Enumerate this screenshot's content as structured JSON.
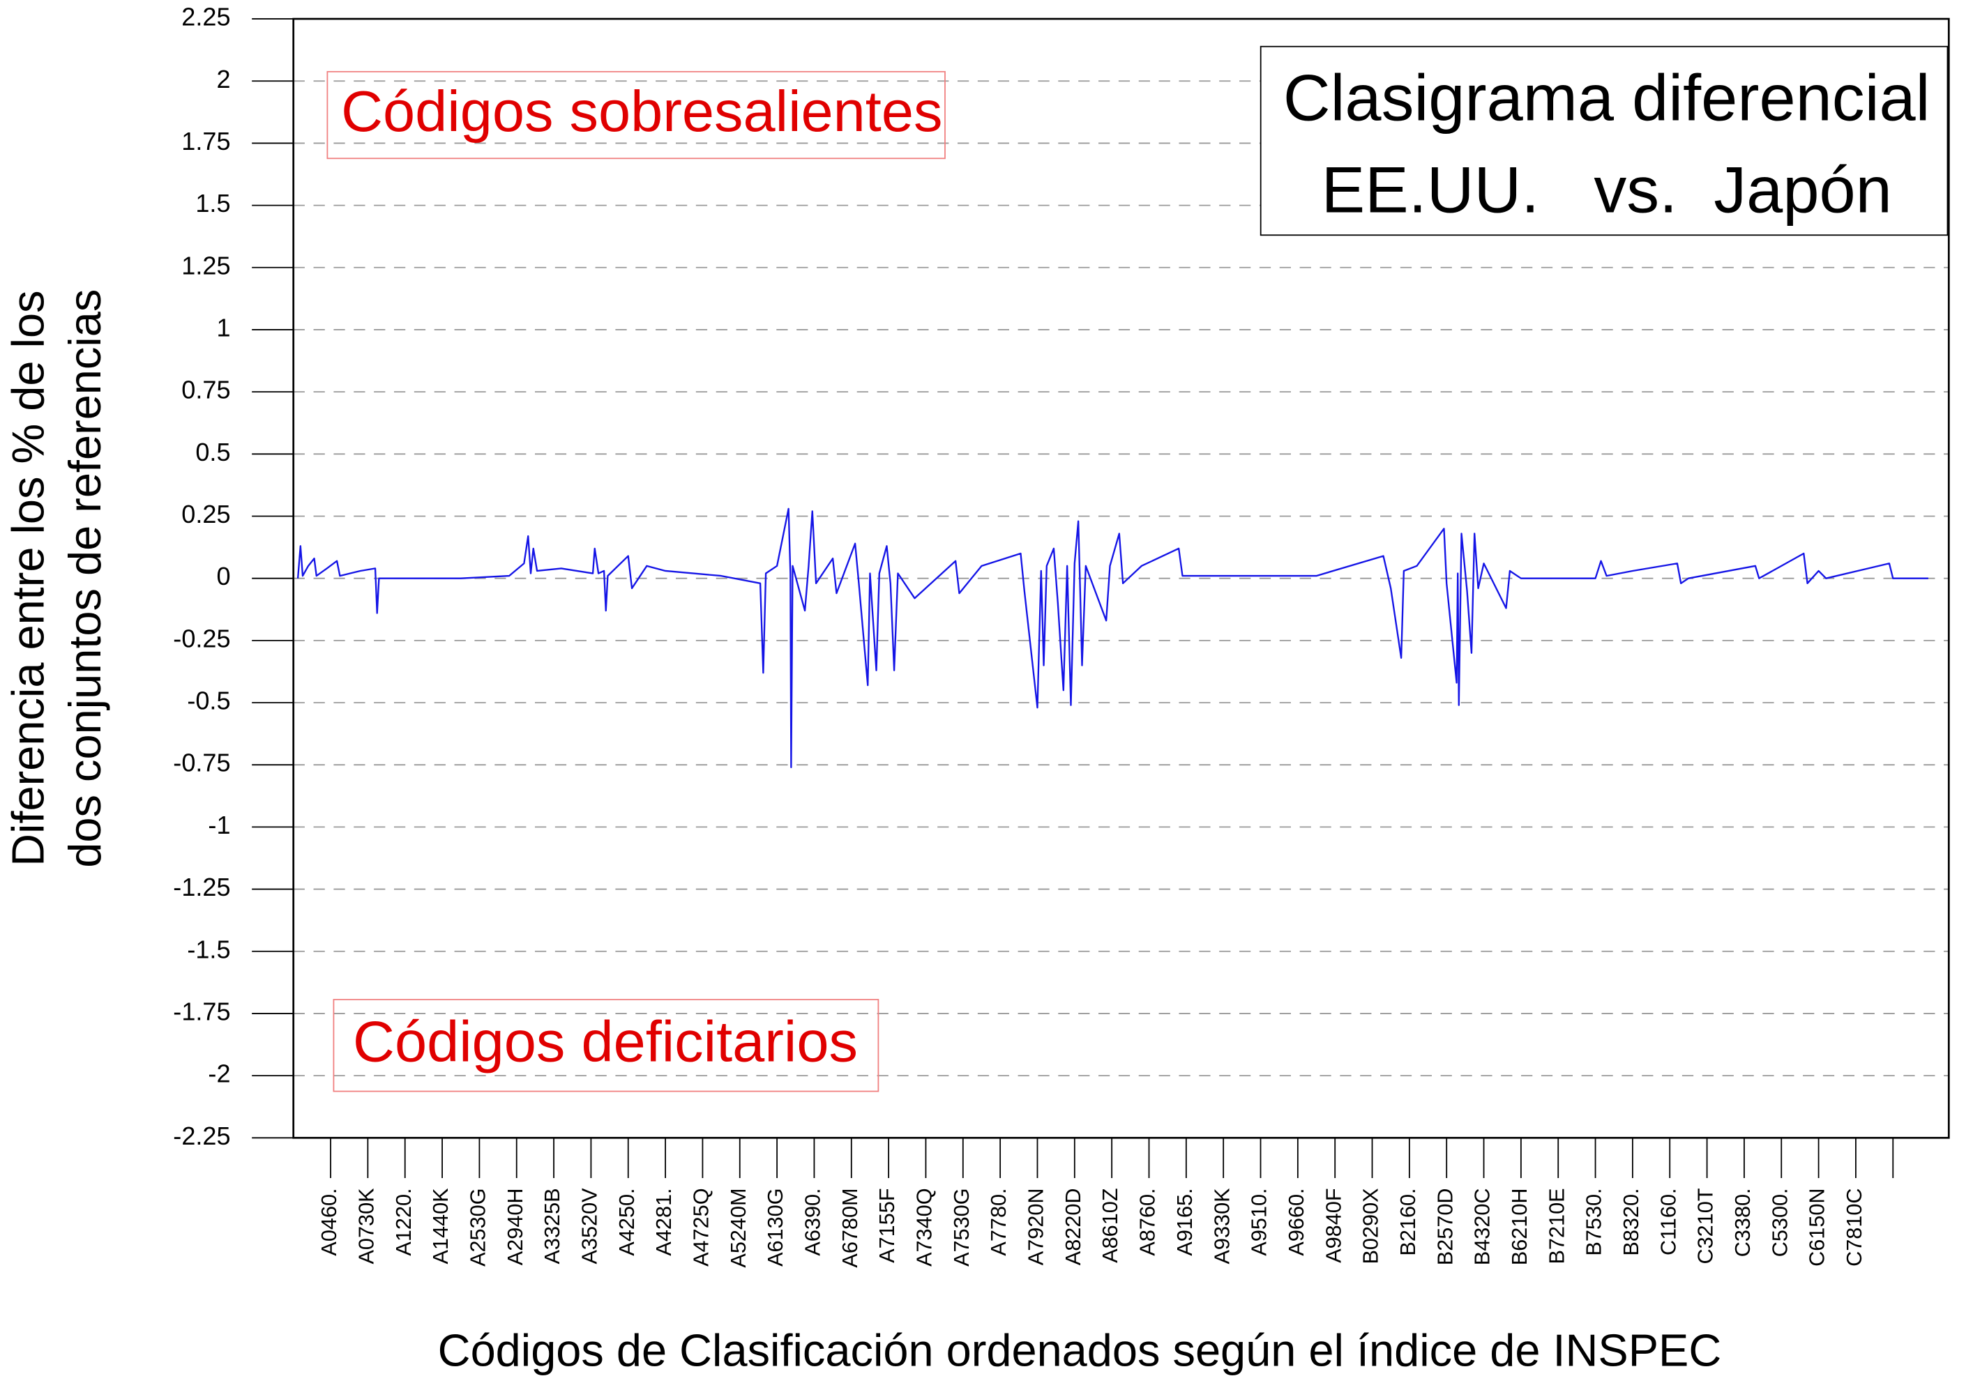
{
  "chart_data": {
    "type": "line",
    "title": [
      "Clasigrama diferencial",
      "EE.UU.   vs.  Japón"
    ],
    "annotations": [
      "Códigos sobresalientes",
      "Códigos deficitarios"
    ],
    "ylabel": [
      "Diferencia entre los % de los",
      "dos conjuntos de referencias"
    ],
    "xlabel": "Códigos de Clasificación ordenados según el índice de INSPEC",
    "color": "#1414e6",
    "grid": true,
    "xlim": [
      -1,
      43.5
    ],
    "ylim": [
      -2.25,
      2.25
    ],
    "yticks": [
      2.25,
      2,
      1.75,
      1.5,
      1.25,
      1,
      0.75,
      0.5,
      0.25,
      0,
      -0.25,
      -0.5,
      -0.75,
      -1,
      -1.25,
      -1.5,
      -1.75,
      -2,
      -2.25
    ],
    "xticks": [
      {
        "value": 0,
        "label": "A0460."
      },
      {
        "value": 1,
        "label": "A0730K"
      },
      {
        "value": 2,
        "label": "A1220."
      },
      {
        "value": 3,
        "label": "A1440K"
      },
      {
        "value": 4,
        "label": "A2530G"
      },
      {
        "value": 5,
        "label": "A2940H"
      },
      {
        "value": 6,
        "label": "A3325B"
      },
      {
        "value": 7,
        "label": "A3520V"
      },
      {
        "value": 8,
        "label": "A4250."
      },
      {
        "value": 9,
        "label": "A4281."
      },
      {
        "value": 10,
        "label": "A4725Q"
      },
      {
        "value": 11,
        "label": "A5240M"
      },
      {
        "value": 12,
        "label": "A6130G"
      },
      {
        "value": 13,
        "label": "A6390."
      },
      {
        "value": 14,
        "label": "A6780M"
      },
      {
        "value": 15,
        "label": "A7155F"
      },
      {
        "value": 16,
        "label": "A7340Q"
      },
      {
        "value": 17,
        "label": "A7530G"
      },
      {
        "value": 18,
        "label": "A7780."
      },
      {
        "value": 19,
        "label": "A7920N"
      },
      {
        "value": 20,
        "label": "A8220D"
      },
      {
        "value": 21,
        "label": "A8610Z"
      },
      {
        "value": 22,
        "label": "A8760."
      },
      {
        "value": 23,
        "label": "A9165."
      },
      {
        "value": 24,
        "label": "A9330K"
      },
      {
        "value": 25,
        "label": "A9510."
      },
      {
        "value": 26,
        "label": "A9660."
      },
      {
        "value": 27,
        "label": "A9840F"
      },
      {
        "value": 28,
        "label": "B0290X"
      },
      {
        "value": 29,
        "label": "B2160."
      },
      {
        "value": 30,
        "label": "B2570D"
      },
      {
        "value": 31,
        "label": "B4320C"
      },
      {
        "value": 32,
        "label": "B6210H"
      },
      {
        "value": 33,
        "label": "B7210E"
      },
      {
        "value": 34,
        "label": "B7530."
      },
      {
        "value": 35,
        "label": "B8320."
      },
      {
        "value": 36,
        "label": "C1160."
      },
      {
        "value": 37,
        "label": "C3210T"
      },
      {
        "value": 38,
        "label": "C3380."
      },
      {
        "value": 39,
        "label": "C5300."
      },
      {
        "value": 40,
        "label": "C6150N"
      },
      {
        "value": 41,
        "label": "C7810C"
      },
      {
        "value": 42,
        "label": ""
      }
    ],
    "x": [
      -0.88,
      -0.81,
      -0.75,
      -0.6,
      -0.44,
      -0.38,
      -0.1,
      0.17,
      0.25,
      0.8,
      1.2,
      1.25,
      1.3,
      3.5,
      4.8,
      5.2,
      5.31,
      5.38,
      5.45,
      5.55,
      6.2,
      7.05,
      7.1,
      7.2,
      7.35,
      7.4,
      7.45,
      8.0,
      8.1,
      8.5,
      9.0,
      10.5,
      11.55,
      11.63,
      11.7,
      12.0,
      12.31,
      12.36,
      12.38,
      12.42,
      12.75,
      12.85,
      12.95,
      13.05,
      13.5,
      13.6,
      14.1,
      14.2,
      14.44,
      14.5,
      14.67,
      14.75,
      14.95,
      15.05,
      15.15,
      15.25,
      15.7,
      16.8,
      16.9,
      17.5,
      18.55,
      18.65,
      19.0,
      19.1,
      19.17,
      19.25,
      19.44,
      19.55,
      19.7,
      19.8,
      19.9,
      20.0,
      20.1,
      20.15,
      20.2,
      20.3,
      20.85,
      20.95,
      21.2,
      21.3,
      21.8,
      22.8,
      22.9,
      24.0,
      26.5,
      28.3,
      28.5,
      28.78,
      28.85,
      29.2,
      29.93,
      30.0,
      30.27,
      30.3,
      30.33,
      30.4,
      30.55,
      30.67,
      30.75,
      30.85,
      31.0,
      31.6,
      31.7,
      32.0,
      34.0,
      34.15,
      34.3,
      35.0,
      36.2,
      36.3,
      36.5,
      38.3,
      38.4,
      39.6,
      39.7,
      40.0,
      40.2,
      41.9,
      42.0,
      42.95
    ],
    "values": [
      0,
      0.13,
      0.01,
      0.05,
      0.08,
      0.01,
      0.04,
      0.07,
      0.01,
      0.03,
      0.04,
      -0.14,
      0,
      0,
      0.01,
      0.06,
      0.17,
      0.02,
      0.12,
      0.03,
      0.04,
      0.02,
      0.12,
      0.02,
      0.03,
      -0.13,
      0.01,
      0.09,
      -0.04,
      0.05,
      0.03,
      0.01,
      -0.02,
      -0.38,
      0.02,
      0.05,
      0.28,
      0.02,
      -0.76,
      0.05,
      -0.13,
      0.05,
      0.27,
      -0.02,
      0.08,
      -0.06,
      0.14,
      -0.02,
      -0.43,
      0.02,
      -0.37,
      0.02,
      0.13,
      -0.02,
      -0.37,
      0.02,
      -0.08,
      0.07,
      -0.06,
      0.05,
      0.1,
      -0.05,
      -0.52,
      0.03,
      -0.35,
      0.05,
      0.12,
      -0.1,
      -0.45,
      0.05,
      -0.51,
      0.06,
      0.23,
      -0.05,
      -0.35,
      0.05,
      -0.17,
      0.05,
      0.18,
      -0.02,
      0.05,
      0.12,
      0.01,
      0.01,
      0.01,
      0.09,
      -0.04,
      -0.32,
      0.03,
      0.05,
      0.2,
      -0.02,
      -0.42,
      0.02,
      -0.51,
      0.18,
      -0.05,
      -0.3,
      0.18,
      -0.04,
      0.06,
      -0.12,
      0.03,
      0,
      0,
      0.07,
      0.01,
      0.03,
      0.06,
      -0.02,
      0,
      0.05,
      0,
      0.1,
      -0.02,
      0.03,
      0,
      0.06,
      0,
      0
    ]
  }
}
